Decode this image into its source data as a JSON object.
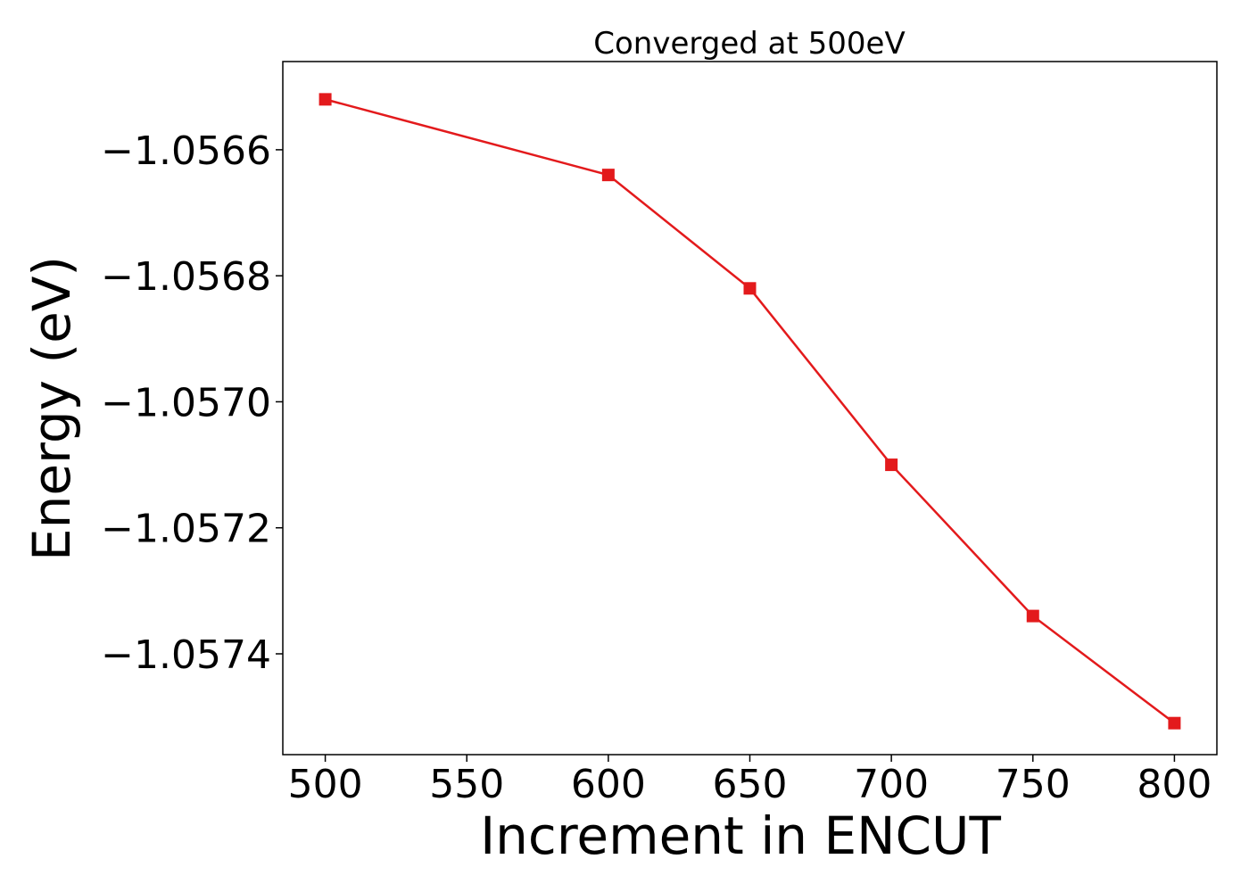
{
  "chart_data": {
    "type": "line",
    "title": "Converged at 500eV",
    "xlabel": "Increment in ENCUT",
    "ylabel": "Energy (eV)",
    "xlim": [
      485,
      815
    ],
    "ylim": [
      -1.05756,
      -1.05646
    ],
    "x_ticks": [
      500,
      550,
      600,
      650,
      700,
      750,
      800
    ],
    "x_tick_labels": [
      "500",
      "550",
      "600",
      "650",
      "700",
      "750",
      "800"
    ],
    "y_ticks": [
      -1.0566,
      -1.0568,
      -1.057,
      -1.0572,
      -1.0574
    ],
    "y_tick_labels": [
      "−1.0566",
      "−1.0568",
      "−1.0570",
      "−1.0572",
      "−1.0574"
    ],
    "grid": false,
    "series": [
      {
        "color": "#e31a1c",
        "marker": "square",
        "x": [
          500,
          600,
          650,
          700,
          750,
          800
        ],
        "y": [
          -1.05652,
          -1.05664,
          -1.05682,
          -1.0571,
          -1.05734,
          -1.05751
        ]
      }
    ]
  }
}
